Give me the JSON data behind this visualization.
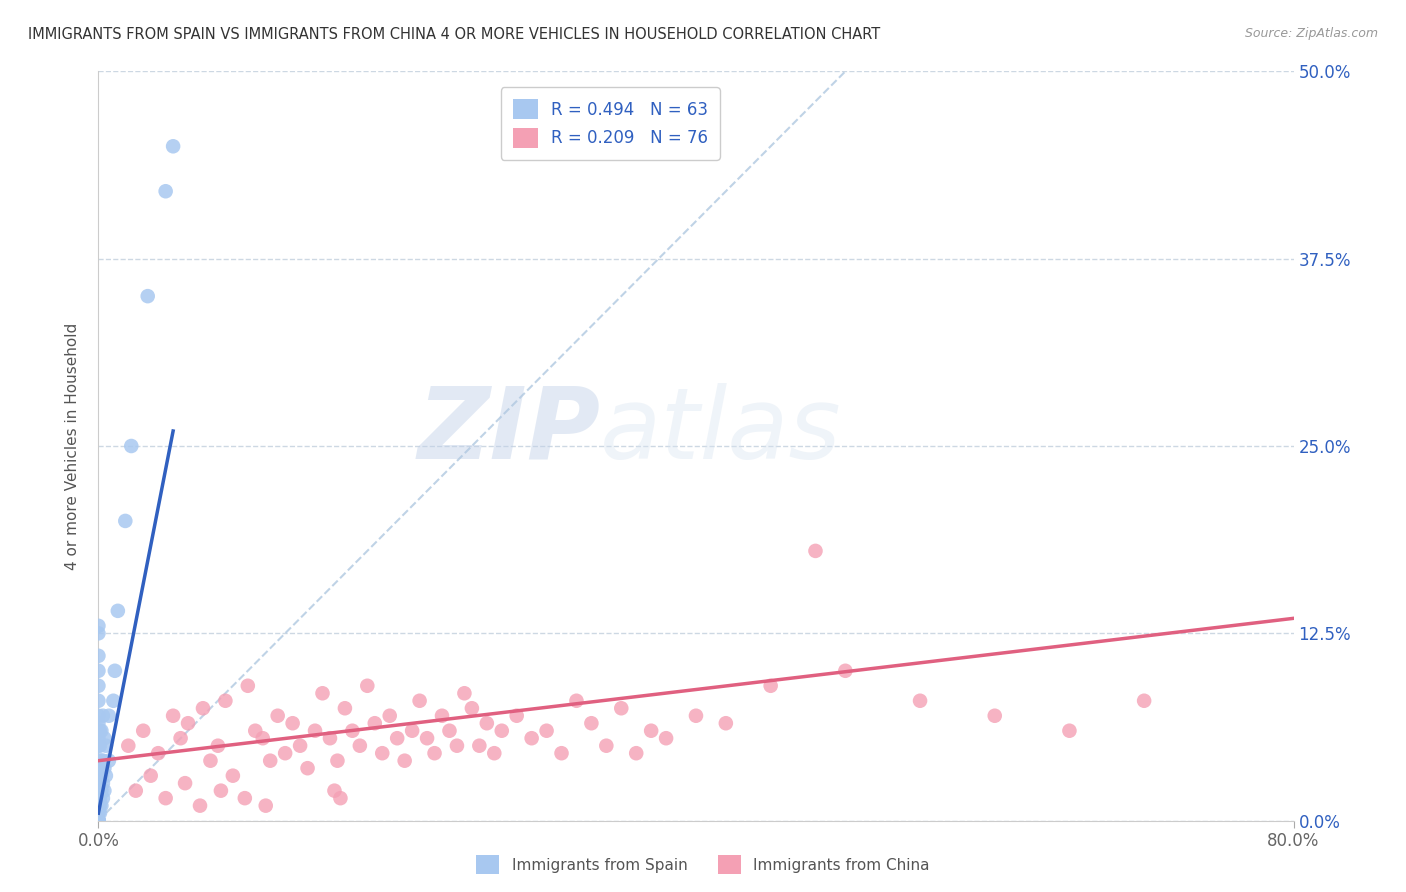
{
  "title": "IMMIGRANTS FROM SPAIN VS IMMIGRANTS FROM CHINA 4 OR MORE VEHICLES IN HOUSEHOLD CORRELATION CHART",
  "source": "Source: ZipAtlas.com",
  "ylabel": "4 or more Vehicles in Household",
  "xlim": [
    0.0,
    80.0
  ],
  "ylim": [
    0.0,
    50.0
  ],
  "yticks": [
    0.0,
    12.5,
    25.0,
    37.5,
    50.0
  ],
  "legend_label1": "Immigrants from Spain",
  "legend_label2": "Immigrants from China",
  "r1": 0.494,
  "n1": 63,
  "r2": 0.209,
  "n2": 76,
  "color_spain": "#a8c8f0",
  "color_china": "#f4a0b4",
  "color_spain_line": "#3060c0",
  "color_china_line": "#e06080",
  "color_diagonal": "#b0c8e0",
  "background": "#ffffff",
  "grid_color": "#c8d4e0",
  "watermark_zip": "ZIP",
  "watermark_atlas": "atlas",
  "spain_x": [
    0.0,
    0.0,
    0.0,
    0.0,
    0.0,
    0.0,
    0.0,
    0.0,
    0.0,
    0.0,
    0.0,
    0.0,
    0.0,
    0.0,
    0.0,
    0.0,
    0.0,
    0.0,
    0.0,
    0.0,
    0.0,
    0.0,
    0.0,
    0.0,
    0.0,
    0.0,
    0.0,
    0.0,
    0.0,
    0.0,
    0.1,
    0.1,
    0.1,
    0.1,
    0.1,
    0.1,
    0.1,
    0.1,
    0.1,
    0.2,
    0.2,
    0.2,
    0.2,
    0.2,
    0.3,
    0.3,
    0.3,
    0.3,
    0.4,
    0.4,
    0.4,
    0.5,
    0.5,
    0.7,
    0.7,
    1.0,
    1.1,
    1.3,
    1.8,
    2.2,
    3.3,
    4.5,
    5.0
  ],
  "spain_y": [
    0.0,
    0.0,
    0.0,
    0.0,
    0.0,
    0.0,
    0.0,
    0.0,
    0.5,
    0.5,
    1.0,
    1.0,
    1.5,
    1.5,
    2.0,
    2.5,
    3.0,
    3.5,
    4.0,
    5.0,
    5.5,
    6.0,
    6.5,
    7.0,
    8.0,
    9.0,
    10.0,
    11.0,
    12.5,
    13.0,
    0.5,
    1.0,
    1.5,
    2.0,
    2.5,
    3.0,
    4.0,
    5.0,
    6.0,
    1.0,
    2.0,
    3.0,
    4.0,
    6.0,
    1.5,
    2.5,
    4.0,
    7.0,
    2.0,
    3.5,
    5.5,
    3.0,
    5.0,
    4.0,
    7.0,
    8.0,
    10.0,
    14.0,
    20.0,
    25.0,
    35.0,
    42.0,
    45.0
  ],
  "china_x": [
    2.0,
    3.0,
    4.0,
    5.0,
    5.5,
    6.0,
    7.0,
    7.5,
    8.0,
    8.5,
    9.0,
    10.0,
    10.5,
    11.0,
    11.5,
    12.0,
    12.5,
    13.0,
    13.5,
    14.0,
    14.5,
    15.0,
    15.5,
    16.0,
    16.5,
    17.0,
    17.5,
    18.0,
    18.5,
    19.0,
    19.5,
    20.0,
    20.5,
    21.0,
    21.5,
    22.0,
    22.5,
    23.0,
    23.5,
    24.0,
    24.5,
    25.0,
    25.5,
    26.0,
    26.5,
    27.0,
    28.0,
    29.0,
    30.0,
    31.0,
    32.0,
    33.0,
    34.0,
    35.0,
    36.0,
    37.0,
    38.0,
    40.0,
    42.0,
    45.0,
    48.0,
    50.0,
    55.0,
    60.0,
    65.0,
    70.0,
    2.5,
    3.5,
    4.5,
    5.8,
    6.8,
    8.2,
    9.8,
    11.2,
    15.8,
    16.2
  ],
  "china_y": [
    5.0,
    6.0,
    4.5,
    7.0,
    5.5,
    6.5,
    7.5,
    4.0,
    5.0,
    8.0,
    3.0,
    9.0,
    6.0,
    5.5,
    4.0,
    7.0,
    4.5,
    6.5,
    5.0,
    3.5,
    6.0,
    8.5,
    5.5,
    4.0,
    7.5,
    6.0,
    5.0,
    9.0,
    6.5,
    4.5,
    7.0,
    5.5,
    4.0,
    6.0,
    8.0,
    5.5,
    4.5,
    7.0,
    6.0,
    5.0,
    8.5,
    7.5,
    5.0,
    6.5,
    4.5,
    6.0,
    7.0,
    5.5,
    6.0,
    4.5,
    8.0,
    6.5,
    5.0,
    7.5,
    4.5,
    6.0,
    5.5,
    7.0,
    6.5,
    9.0,
    18.0,
    10.0,
    8.0,
    7.0,
    6.0,
    8.0,
    2.0,
    3.0,
    1.5,
    2.5,
    1.0,
    2.0,
    1.5,
    1.0,
    2.0,
    1.5
  ],
  "spain_line_x": [
    0.0,
    5.0
  ],
  "spain_line_y": [
    0.5,
    26.0
  ],
  "china_line_x": [
    0.0,
    80.0
  ],
  "china_line_y": [
    4.0,
    13.5
  ],
  "diag_line_x": [
    0.0,
    50.0
  ],
  "diag_line_y": [
    0.0,
    50.0
  ]
}
